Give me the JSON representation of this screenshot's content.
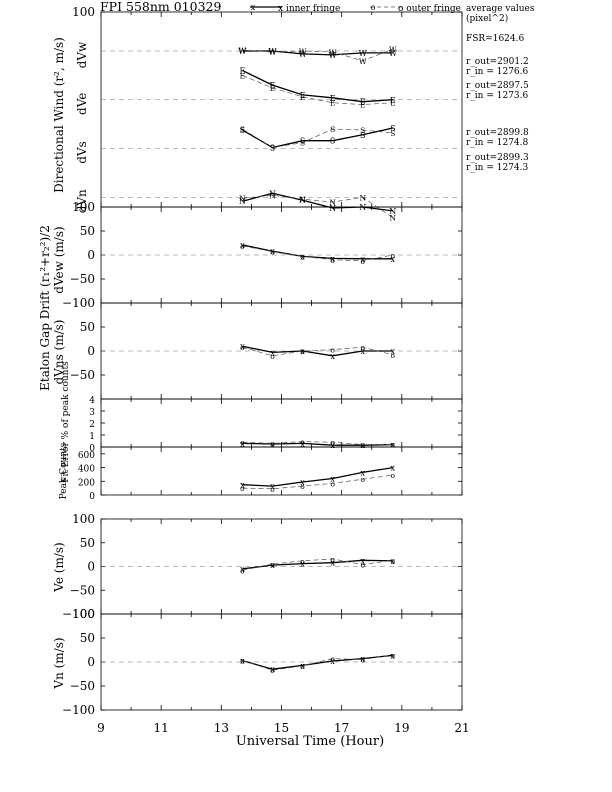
{
  "title": "FPI 558nm 010329",
  "legend": {
    "inner_label": "x inner fringe",
    "inner_symbol": "x",
    "outer_label": "o outer fringe",
    "outer_symbol": "o",
    "avg_title": "average values",
    "avg_unit": "(pixel^2)"
  },
  "side_values": {
    "fsr": "FSR=1624.6",
    "w_out": "r_out=2901.2",
    "w_in": "r_in = 1276.6",
    "e_out": "r_out=2897.5",
    "e_in": "r_in = 1273.6",
    "s_out": "r_out=2899.8",
    "s_in": "r_in = 1274.8",
    "n_out": "r_out=2899.3",
    "n_in": "r_in = 1274.3"
  },
  "group_labels": {
    "directional": "Directional Wind (r², m/s)",
    "etalon": "Etalon Gap Drift (r₁²+r₂²)/2"
  },
  "x_axis": {
    "label": "Universal Time (Hour)",
    "range": [
      9,
      21
    ],
    "ticks": [
      "9",
      "11",
      "13",
      "15",
      "17",
      "19",
      "21"
    ]
  },
  "chart_data": [
    {
      "id": "directional-wind",
      "type": "line",
      "ylim": [
        -100,
        100
      ],
      "y_ticks": [
        "100",
        "100"
      ],
      "channel_labels": [
        "dVw",
        "dVe",
        "dVs",
        "dVn"
      ],
      "channel_zero_positions": [
        60,
        10,
        -40,
        -90
      ],
      "x": [
        13.7,
        14.7,
        15.7,
        16.7,
        17.7,
        18.7
      ],
      "series": [
        {
          "channel": "dVw",
          "fringe": "inner",
          "symbol": "W",
          "values": [
            60,
            60,
            57,
            56,
            58,
            58
          ]
        },
        {
          "channel": "dVw",
          "fringe": "outer",
          "symbol": "W",
          "values": [
            61,
            59,
            60,
            59,
            50,
            62
          ]
        },
        {
          "channel": "dVe",
          "fringe": "inner",
          "symbol": "E",
          "values": [
            40,
            25,
            15,
            12,
            8,
            10
          ]
        },
        {
          "channel": "dVe",
          "fringe": "outer",
          "symbol": "E",
          "values": [
            35,
            22,
            13,
            7,
            5,
            7
          ]
        },
        {
          "channel": "dVs",
          "fringe": "inner",
          "symbol": "S",
          "values": [
            -21,
            -39,
            -32,
            -32,
            -26,
            -19
          ]
        },
        {
          "channel": "dVs",
          "fringe": "outer",
          "symbol": "S",
          "values": [
            -20,
            -39,
            -34,
            -20,
            -21,
            -24
          ]
        },
        {
          "channel": "dVn",
          "fringe": "inner",
          "symbol": "N",
          "values": [
            -94,
            -86,
            -93,
            -101,
            -100,
            -104
          ]
        },
        {
          "channel": "dVn",
          "fringe": "outer",
          "symbol": "N",
          "values": [
            -91,
            -88,
            -92,
            -95,
            -90,
            -111
          ]
        }
      ]
    },
    {
      "id": "dvew",
      "type": "line",
      "ylabel": "dVew (m/s)",
      "ylim": [
        -100,
        100
      ],
      "y_ticks": [
        "50",
        "0",
        "−50",
        "−100"
      ],
      "x": [
        13.7,
        14.7,
        15.7,
        16.7,
        17.7,
        18.7
      ],
      "series": [
        {
          "fringe": "inner",
          "symbol": "x",
          "values": [
            21,
            8,
            -3,
            -7,
            -8,
            -8
          ]
        },
        {
          "fringe": "outer",
          "symbol": "o",
          "values": [
            19,
            7,
            -3,
            -10,
            -12,
            0
          ]
        }
      ]
    },
    {
      "id": "dvns",
      "type": "line",
      "ylabel": "dVns (m/s)",
      "ylim": [
        -100,
        100
      ],
      "y_ticks": [
        "50",
        "0",
        "−50"
      ],
      "x": [
        13.7,
        14.7,
        15.7,
        16.7,
        17.7,
        18.7
      ],
      "series": [
        {
          "fringe": "inner",
          "symbol": "x",
          "values": [
            10,
            -3,
            0,
            -10,
            0,
            0
          ]
        },
        {
          "fringe": "outer",
          "symbol": "o",
          "values": [
            8,
            -10,
            0,
            3,
            8,
            -8
          ]
        }
      ]
    },
    {
      "id": "fit-error",
      "type": "line",
      "ylabel": "Fit Error % of peak counts",
      "ylim": [
        0,
        4
      ],
      "y_ticks": [
        "4",
        "3",
        "2",
        "1",
        "0"
      ],
      "x": [
        13.7,
        14.7,
        15.7,
        16.7,
        17.7,
        18.7
      ],
      "series": [
        {
          "fringe": "inner",
          "symbol": "x",
          "values": [
            0.3,
            0.25,
            0.3,
            0.15,
            0.15,
            0.2
          ]
        },
        {
          "fringe": "outer",
          "symbol": "o",
          "values": [
            0.4,
            0.3,
            0.45,
            0.4,
            0.2,
            0.2
          ]
        }
      ]
    },
    {
      "id": "peak-counts",
      "type": "line",
      "ylabel": "Peak Counts",
      "ylim": [
        0,
        700
      ],
      "y_ticks": [
        "600",
        "400",
        "200",
        "0"
      ],
      "x": [
        13.7,
        14.7,
        15.7,
        16.7,
        17.7,
        18.7
      ],
      "series": [
        {
          "fringe": "inner",
          "symbol": "x",
          "values": [
            150,
            130,
            190,
            240,
            330,
            400
          ]
        },
        {
          "fringe": "outer",
          "symbol": "o",
          "values": [
            100,
            90,
            130,
            170,
            230,
            290
          ]
        }
      ]
    },
    {
      "id": "ve",
      "type": "line",
      "ylabel": "Ve (m/s)",
      "ylim": [
        -100,
        100
      ],
      "y_ticks": [
        "100",
        "50",
        "0",
        "−50",
        "−100"
      ],
      "x": [
        13.7,
        14.7,
        15.7,
        16.7,
        17.7,
        18.7
      ],
      "series": [
        {
          "fringe": "inner",
          "symbol": "x",
          "values": [
            -5,
            3,
            6,
            8,
            13,
            12
          ]
        },
        {
          "fringe": "outer",
          "symbol": "o",
          "values": [
            -8,
            5,
            12,
            16,
            4,
            13
          ]
        }
      ]
    },
    {
      "id": "vn",
      "type": "line",
      "ylabel": "Vn (m/s)",
      "ylim": [
        -100,
        100
      ],
      "y_ticks": [
        "100",
        "50",
        "0",
        "−50",
        "−100"
      ],
      "x": [
        13.7,
        14.7,
        15.7,
        16.7,
        17.7,
        18.7
      ],
      "series": [
        {
          "fringe": "inner",
          "symbol": "x",
          "values": [
            3,
            -15,
            -7,
            2,
            7,
            14
          ]
        },
        {
          "fringe": "outer",
          "symbol": "o",
          "values": [
            3,
            -17,
            -8,
            7,
            5,
            15
          ]
        }
      ]
    }
  ]
}
